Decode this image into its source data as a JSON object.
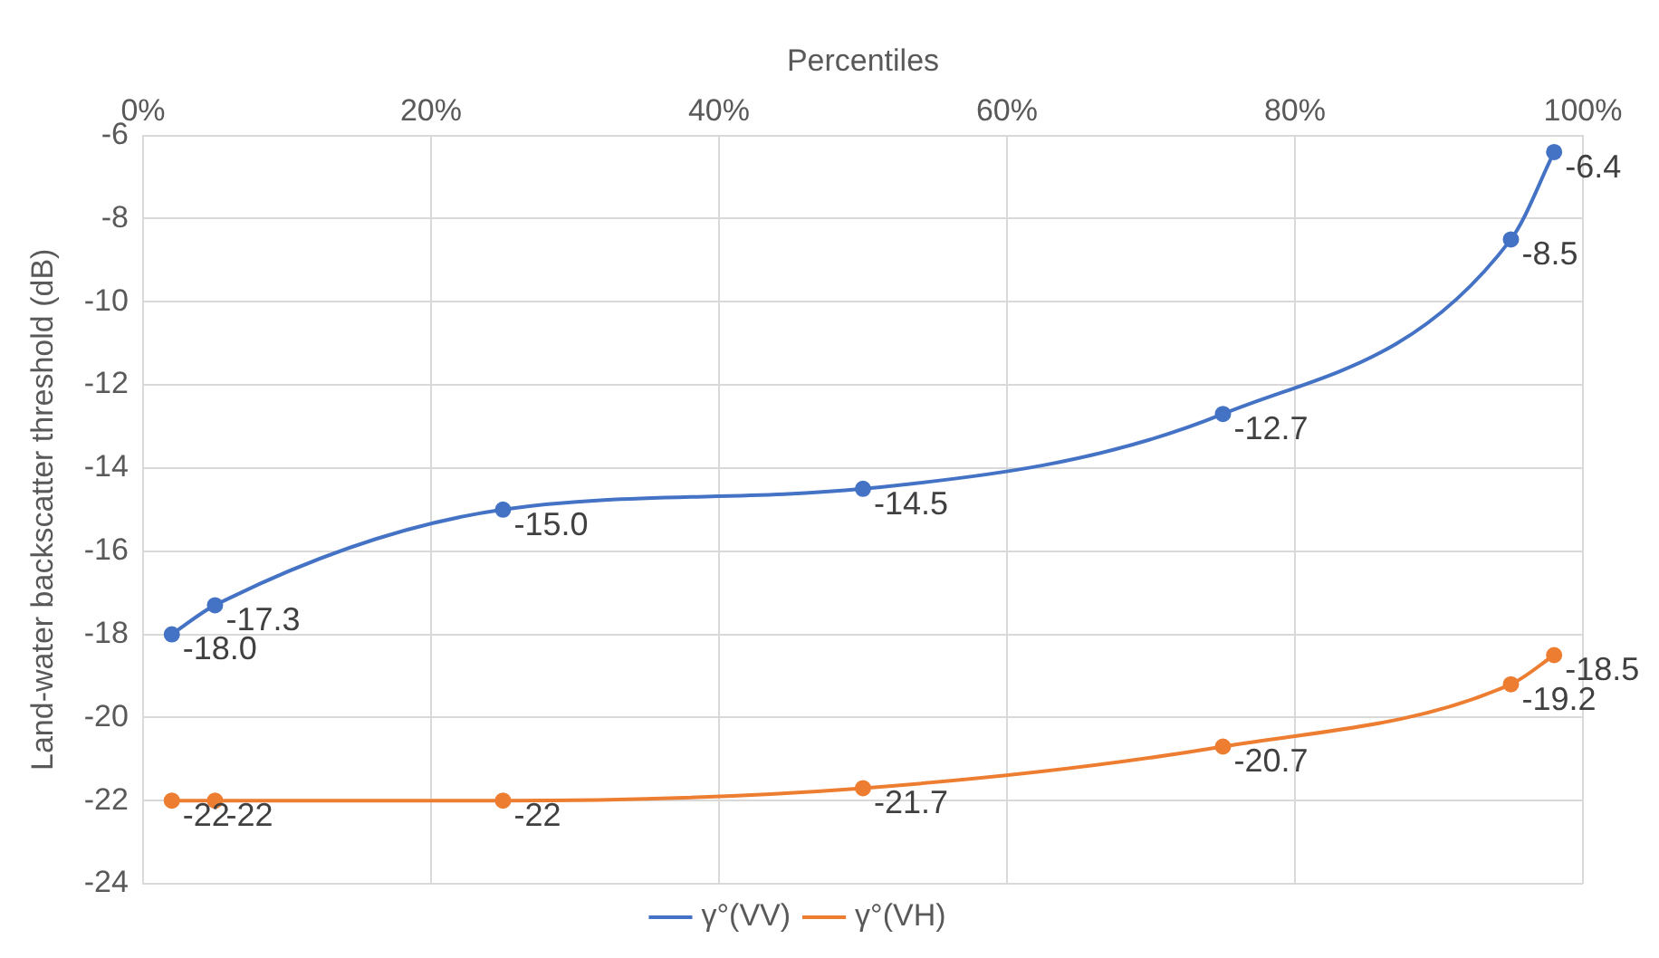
{
  "chart_data": {
    "type": "line",
    "xlabel": "Percentiles",
    "ylabel": "Land-water backscatter threshold (dB)",
    "x": [
      2,
      5,
      25,
      50,
      75,
      95,
      98
    ],
    "series": [
      {
        "name": "γ°(VV)",
        "color": "#4472c4",
        "values": [
          -18.0,
          -17.3,
          -15.0,
          -14.5,
          -12.7,
          -8.5,
          -6.4
        ],
        "value_labels": [
          "-18.0",
          "-17.3",
          "-15.0",
          "-14.5",
          "-12.7",
          "-8.5",
          "-6.4"
        ]
      },
      {
        "name": "γ°(VH)",
        "color": "#ed7d31",
        "values": [
          -22,
          -22,
          -22,
          -21.7,
          -20.7,
          -19.2,
          -18.5
        ],
        "value_labels": [
          "-22",
          "-22",
          "-22",
          "-21.7",
          "-20.7",
          "-19.2",
          "-18.5"
        ]
      }
    ],
    "xlim": [
      0,
      100
    ],
    "xticks": [
      {
        "value": 0,
        "label": "0%"
      },
      {
        "value": 20,
        "label": "20%"
      },
      {
        "value": 40,
        "label": "40%"
      },
      {
        "value": 60,
        "label": "60%"
      },
      {
        "value": 80,
        "label": "80%"
      },
      {
        "value": 100,
        "label": "100%"
      }
    ],
    "ylim": [
      -24,
      -6
    ],
    "yticks": [
      -24,
      -22,
      -20,
      -18,
      -16,
      -14,
      -12,
      -10,
      -8,
      -6
    ],
    "grid": true,
    "legend": "bottom",
    "marker": "circle",
    "line_style": "solid"
  }
}
